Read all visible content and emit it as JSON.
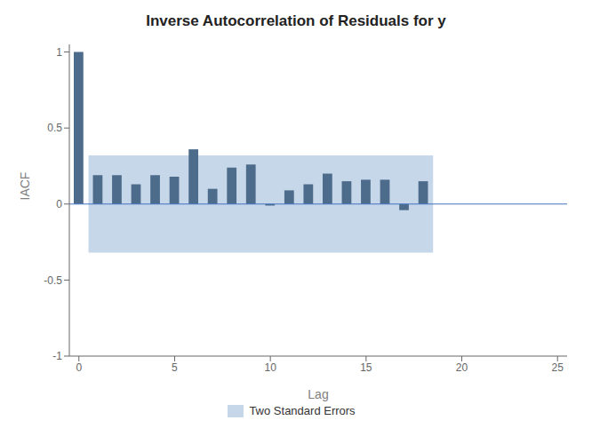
{
  "chart_data": {
    "type": "bar",
    "title": "Inverse Autocorrelation of Residuals for y",
    "xlabel": "Lag",
    "ylabel": "IACF",
    "x": [
      0,
      1,
      2,
      3,
      4,
      5,
      6,
      7,
      8,
      9,
      10,
      11,
      12,
      13,
      14,
      15,
      16,
      17,
      18
    ],
    "values": [
      1.0,
      0.19,
      0.19,
      0.13,
      0.19,
      0.18,
      0.36,
      0.1,
      0.24,
      0.26,
      -0.01,
      0.09,
      0.13,
      0.2,
      0.15,
      0.16,
      0.16,
      -0.04,
      0.15
    ],
    "color": "#4d6b8a",
    "xlim": [
      -0.5,
      25.5
    ],
    "ylim": [
      -1.0,
      1.05
    ],
    "xticks": [
      0,
      5,
      10,
      15,
      20,
      25
    ],
    "yticks": [
      -1.0,
      -0.5,
      0.0,
      0.5,
      1.0
    ],
    "legend": "bottom",
    "band": {
      "name": "Two Standard Errors",
      "color": "#aec6e0",
      "x": [
        0.5,
        18.5
      ],
      "y": [
        -0.32,
        0.32
      ]
    },
    "zero_line": {
      "y": 0,
      "color": "#4472c4"
    }
  }
}
